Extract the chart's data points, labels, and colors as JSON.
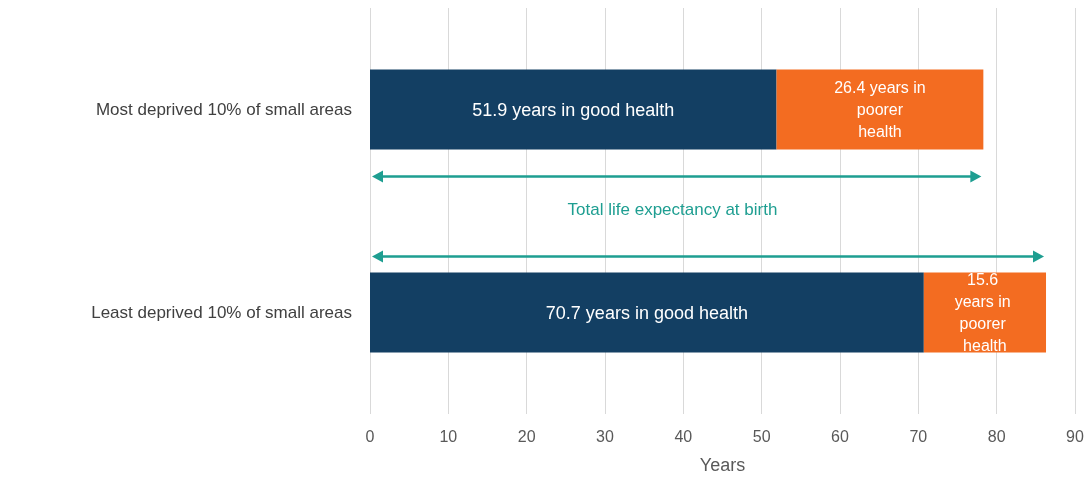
{
  "chart_data": {
    "type": "bar",
    "orientation": "horizontal",
    "stacked": true,
    "categories": [
      "Most deprived 10% of small areas",
      "Least deprived 10% of small areas"
    ],
    "series": [
      {
        "color": "#133f63",
        "values": [
          51.9,
          70.7
        ],
        "value_labels": [
          "51.9 years in good health",
          "70.7 years in good health"
        ]
      },
      {
        "color": "#f36c21",
        "values": [
          26.4,
          15.6
        ],
        "value_labels": [
          "26.4 years in poorer health",
          "15.6 years in poorer health"
        ]
      }
    ],
    "xlim": [
      0,
      90
    ],
    "xticks": [
      0,
      10,
      20,
      30,
      40,
      50,
      60,
      70,
      80,
      90
    ],
    "xlabel": "Years",
    "grid": "x",
    "annotations": [
      "Total life expectancy at birth"
    ]
  }
}
